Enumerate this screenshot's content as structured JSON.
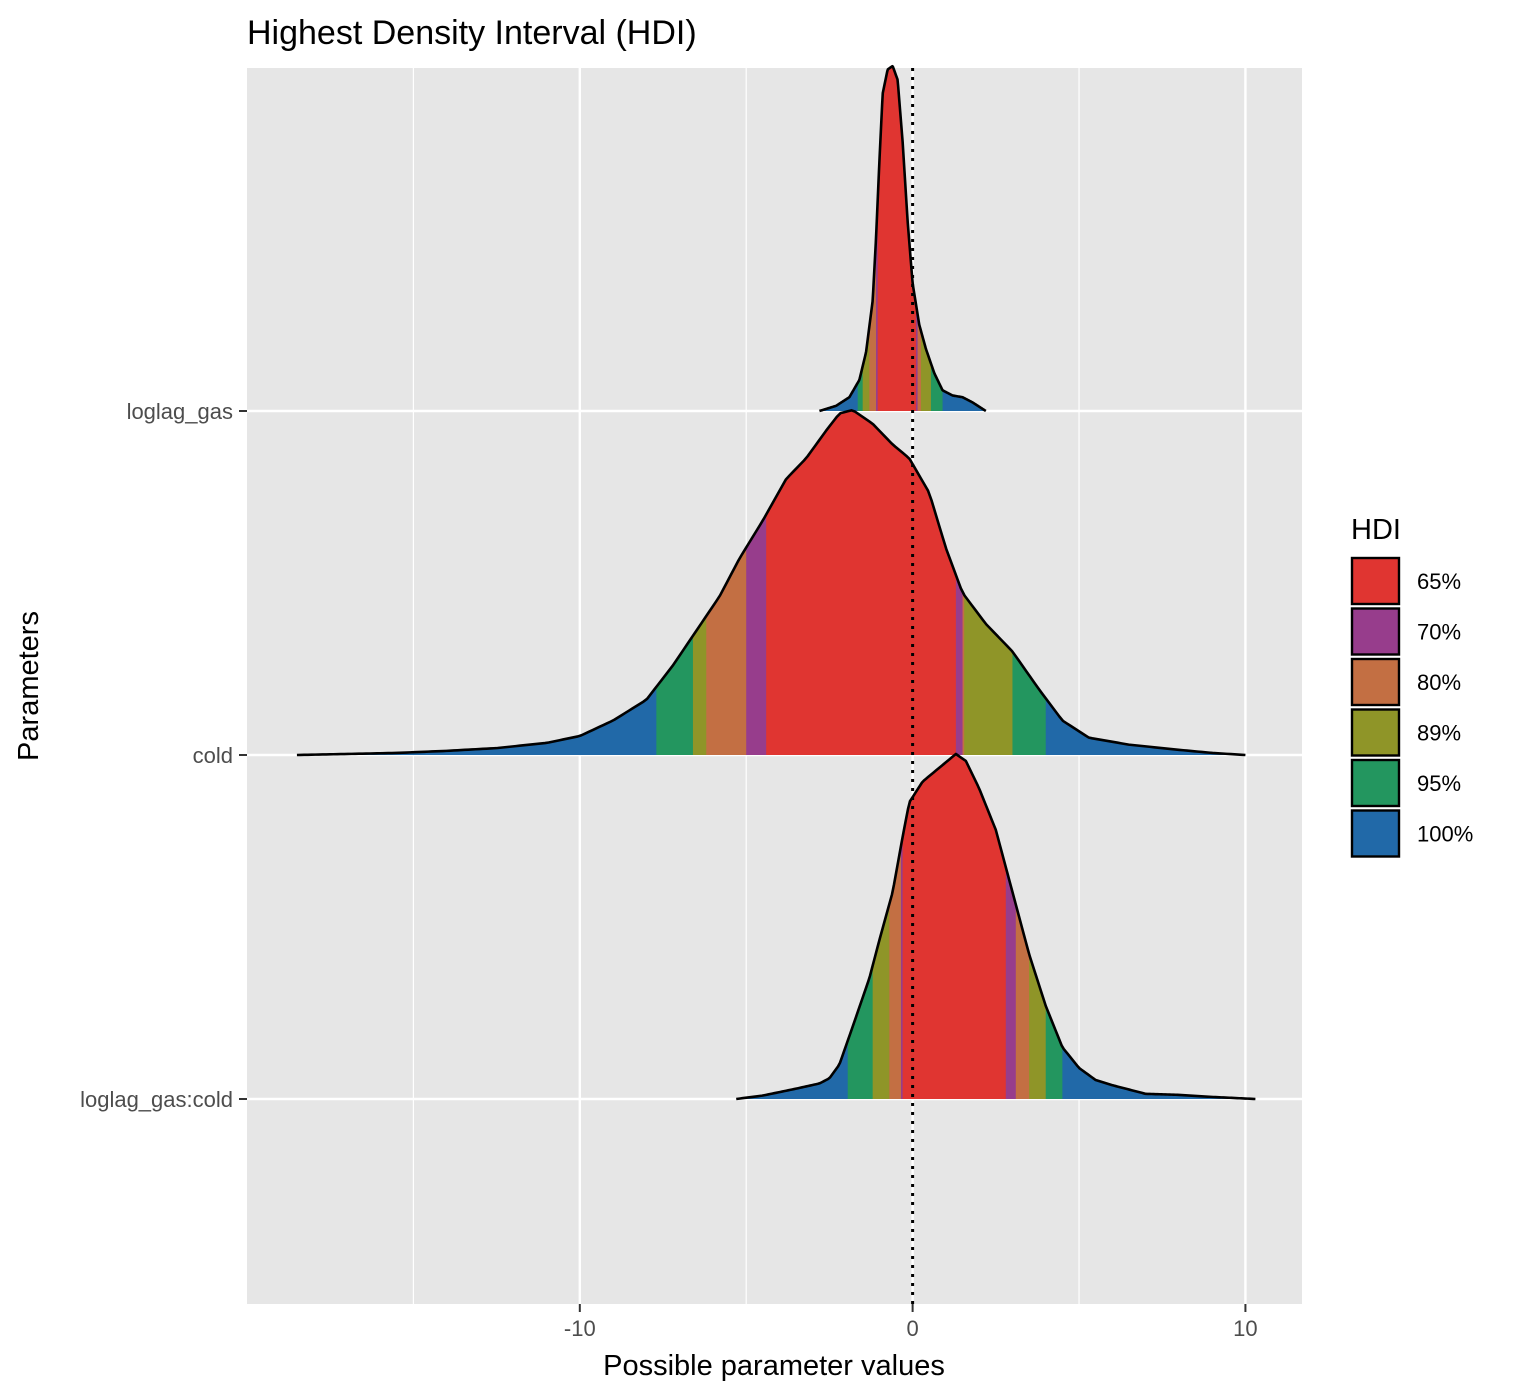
{
  "chart_data": {
    "type": "area",
    "title": "Highest Density Interval (HDI)",
    "xlabel": "Possible parameter values",
    "ylabel": "Parameters",
    "xlim": [
      -20,
      11.7
    ],
    "x_ticks": [
      -10,
      0,
      10
    ],
    "x_tick_labels": [
      "-10",
      "0",
      "10"
    ],
    "grid": true,
    "zero_line": 0,
    "legend": {
      "title": "HDI",
      "placement": "right",
      "entries": [
        {
          "label": "65%",
          "color": "#e03531"
        },
        {
          "label": "70%",
          "color": "#973d8c"
        },
        {
          "label": "80%",
          "color": "#c36f43"
        },
        {
          "label": "89%",
          "color": "#8f9528"
        },
        {
          "label": "95%",
          "color": "#23965f"
        },
        {
          "label": "100%",
          "color": "#2169a8"
        }
      ]
    },
    "series": [
      {
        "name": "loglag_gas",
        "density": [
          [
            -2.8,
            0.0
          ],
          [
            -2.3,
            0.015
          ],
          [
            -1.9,
            0.04
          ],
          [
            -1.6,
            0.09
          ],
          [
            -1.4,
            0.17
          ],
          [
            -1.2,
            0.32
          ],
          [
            -1.1,
            0.5
          ],
          [
            -1.0,
            0.72
          ],
          [
            -0.9,
            0.92
          ],
          [
            -0.75,
            0.99
          ],
          [
            -0.6,
            1.0
          ],
          [
            -0.45,
            0.96
          ],
          [
            -0.3,
            0.78
          ],
          [
            -0.15,
            0.55
          ],
          [
            0.0,
            0.37
          ],
          [
            0.2,
            0.25
          ],
          [
            0.4,
            0.18
          ],
          [
            0.65,
            0.11
          ],
          [
            0.9,
            0.06
          ],
          [
            1.2,
            0.045
          ],
          [
            1.5,
            0.04
          ],
          [
            1.8,
            0.025
          ],
          [
            2.2,
            0.0
          ]
        ],
        "hdi": [
          {
            "level": "65%",
            "low": -1.05,
            "high": 0.1
          },
          {
            "level": "70%",
            "low": -1.1,
            "high": 0.15
          },
          {
            "level": "80%",
            "low": -1.3,
            "high": 0.25
          },
          {
            "level": "89%",
            "low": -1.5,
            "high": 0.55
          },
          {
            "level": "95%",
            "low": -1.65,
            "high": 0.9
          },
          {
            "level": "100%",
            "low": -2.8,
            "high": 2.2
          }
        ]
      },
      {
        "name": "cold",
        "density": [
          [
            -18.5,
            0.0
          ],
          [
            -17,
            0.003
          ],
          [
            -15.5,
            0.006
          ],
          [
            -14,
            0.012
          ],
          [
            -12.5,
            0.02
          ],
          [
            -11,
            0.035
          ],
          [
            -10,
            0.055
          ],
          [
            -9,
            0.1
          ],
          [
            -8,
            0.16
          ],
          [
            -7.2,
            0.26
          ],
          [
            -6.5,
            0.36
          ],
          [
            -5.8,
            0.46
          ],
          [
            -5.2,
            0.57
          ],
          [
            -4.5,
            0.68
          ],
          [
            -3.8,
            0.8
          ],
          [
            -3.2,
            0.86
          ],
          [
            -2.6,
            0.94
          ],
          [
            -2.2,
            0.99
          ],
          [
            -1.8,
            1.0
          ],
          [
            -1.2,
            0.96
          ],
          [
            -0.6,
            0.9
          ],
          [
            -0.1,
            0.86
          ],
          [
            0.5,
            0.76
          ],
          [
            1.0,
            0.6
          ],
          [
            1.5,
            0.47
          ],
          [
            2.2,
            0.38
          ],
          [
            3.0,
            0.3
          ],
          [
            3.8,
            0.19
          ],
          [
            4.5,
            0.1
          ],
          [
            5.3,
            0.05
          ],
          [
            6.5,
            0.03
          ],
          [
            8,
            0.015
          ],
          [
            9,
            0.006
          ],
          [
            10,
            0.0
          ]
        ],
        "hdi": [
          {
            "level": "65%",
            "low": -4.4,
            "high": 1.3
          },
          {
            "level": "70%",
            "low": -5.0,
            "high": 1.5
          },
          {
            "level": "80%",
            "low": -6.2,
            "high": 1.55
          },
          {
            "level": "89%",
            "low": -6.6,
            "high": 3.0
          },
          {
            "level": "95%",
            "low": -7.7,
            "high": 4.0
          },
          {
            "level": "100%",
            "low": -18.5,
            "high": 10.0
          }
        ]
      },
      {
        "name": "loglag_gas:cold",
        "density": [
          [
            -5.3,
            0.0
          ],
          [
            -4.5,
            0.01
          ],
          [
            -3.5,
            0.03
          ],
          [
            -2.8,
            0.045
          ],
          [
            -2.5,
            0.06
          ],
          [
            -2.2,
            0.1
          ],
          [
            -1.8,
            0.21
          ],
          [
            -1.3,
            0.35
          ],
          [
            -1.0,
            0.46
          ],
          [
            -0.6,
            0.6
          ],
          [
            -0.3,
            0.76
          ],
          [
            -0.1,
            0.86
          ],
          [
            0.3,
            0.92
          ],
          [
            0.8,
            0.96
          ],
          [
            1.3,
            1.0
          ],
          [
            1.6,
            0.98
          ],
          [
            2.0,
            0.9
          ],
          [
            2.5,
            0.78
          ],
          [
            3.0,
            0.6
          ],
          [
            3.5,
            0.42
          ],
          [
            4.0,
            0.27
          ],
          [
            4.5,
            0.15
          ],
          [
            5.0,
            0.09
          ],
          [
            5.5,
            0.055
          ],
          [
            6.0,
            0.04
          ],
          [
            7.0,
            0.015
          ],
          [
            8.0,
            0.012
          ],
          [
            9.0,
            0.006
          ],
          [
            10.3,
            0.0
          ]
        ],
        "hdi": [
          {
            "level": "65%",
            "low": -0.3,
            "high": 2.8
          },
          {
            "level": "70%",
            "low": -0.35,
            "high": 3.1
          },
          {
            "level": "80%",
            "low": -0.7,
            "high": 3.5
          },
          {
            "level": "89%",
            "low": -1.2,
            "high": 4.0
          },
          {
            "level": "95%",
            "low": -1.95,
            "high": 4.5
          },
          {
            "level": "100%",
            "low": -5.3,
            "high": 10.3
          }
        ]
      }
    ]
  }
}
